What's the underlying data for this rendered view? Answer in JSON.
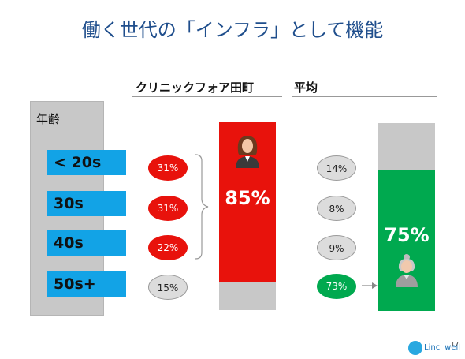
{
  "slide": {
    "title": "働く世代の「インフラ」として機能",
    "page_number": "17"
  },
  "columns": {
    "clinic_header": "クリニックフォア田町",
    "average_header": "平均"
  },
  "age_panel": {
    "label": "年齢",
    "bands": [
      "< 20s",
      "30s",
      "40s",
      "50s+"
    ]
  },
  "clinic": {
    "shares": [
      "31%",
      "31%",
      "22%",
      "15%"
    ],
    "highlight_total": "85%",
    "highlight_fraction": 0.85,
    "highlight_color": "#e8120c"
  },
  "average": {
    "shares": [
      "14%",
      "8%",
      "9%",
      "73%"
    ],
    "highlight_total": "75%",
    "highlight_fraction": 0.75,
    "highlight_color": "#00a94f"
  },
  "logo": {
    "text": "Linc' well"
  },
  "colors": {
    "title": "#1f4e8c",
    "age_band": "#12a3e6",
    "rest": "#c8c8c8"
  }
}
